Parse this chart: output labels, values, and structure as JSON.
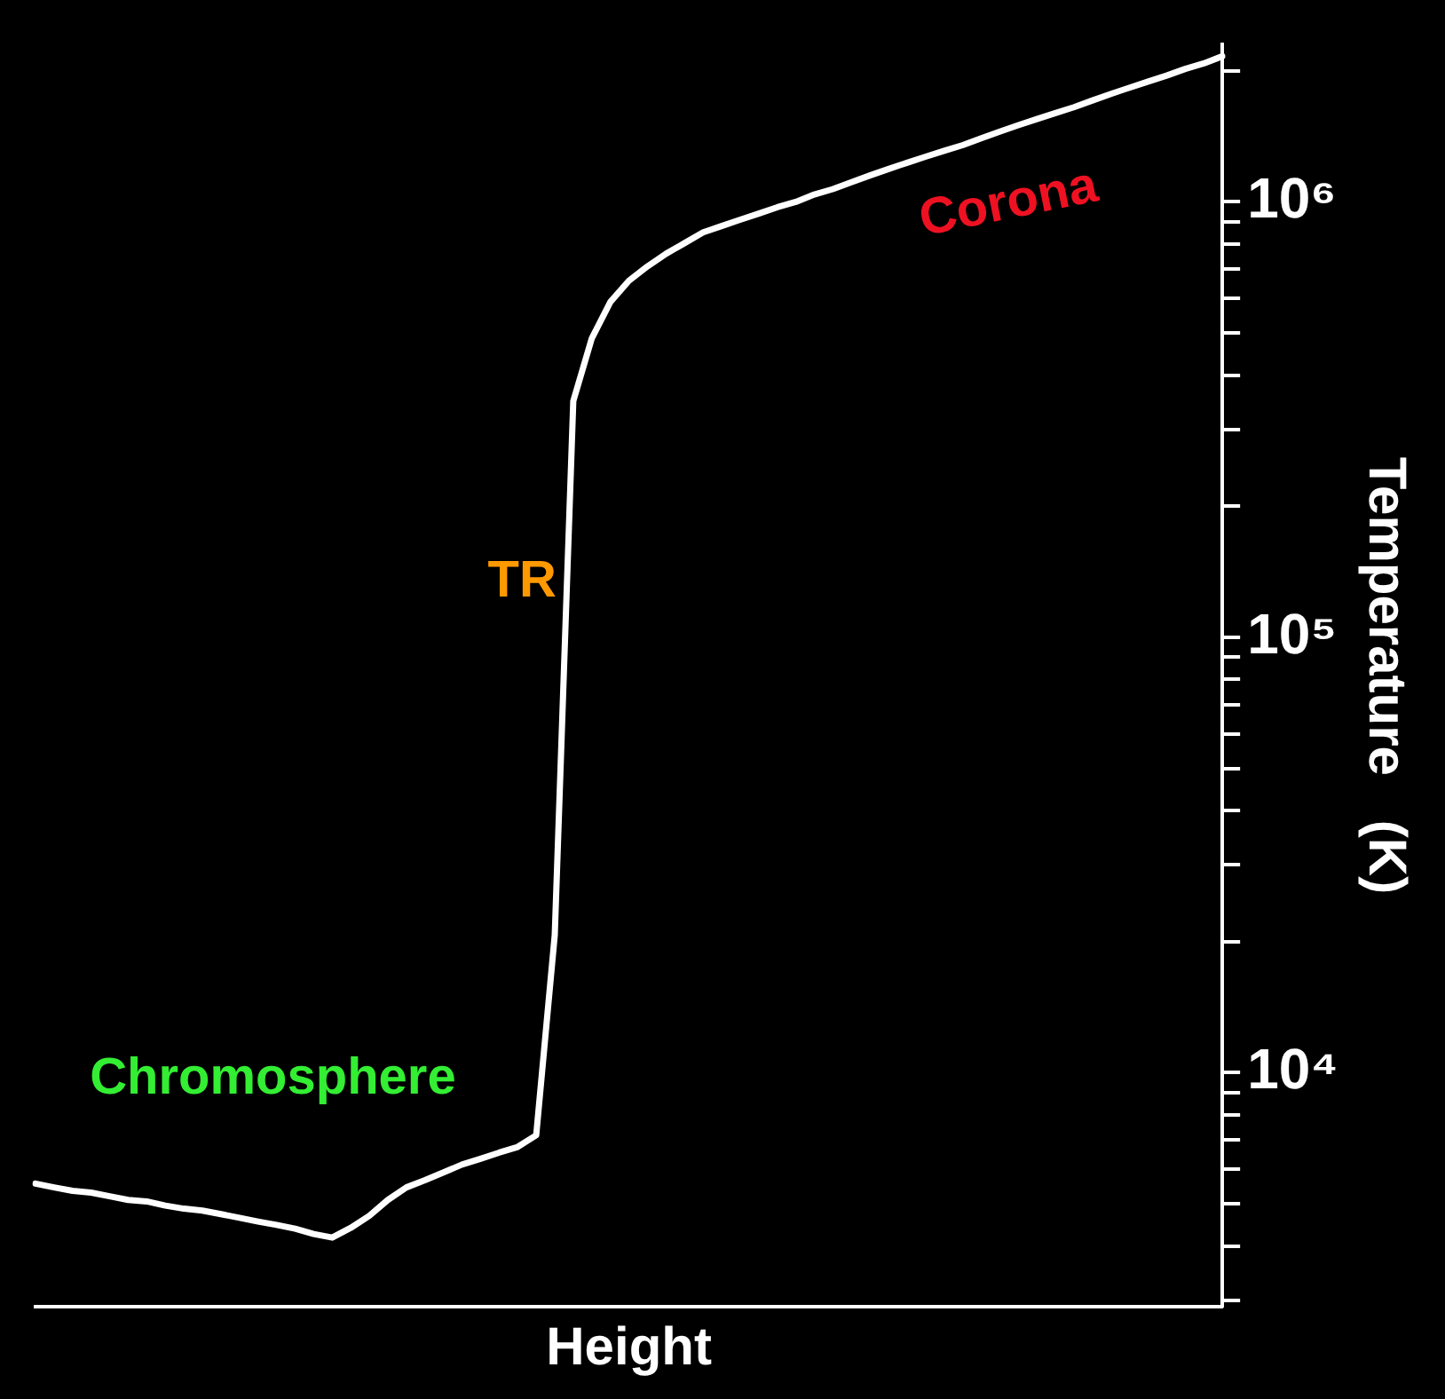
{
  "chart_data": {
    "type": "line",
    "xlabel": "Height",
    "ylabel": "Temperature   (K)",
    "categories": [
      null,
      null,
      null,
      null,
      null,
      null,
      null,
      null,
      null,
      null,
      null,
      null,
      null,
      null,
      null,
      null,
      null,
      null,
      null,
      null,
      null,
      null,
      null,
      null,
      null,
      null,
      null,
      null,
      null,
      null,
      null,
      null,
      null,
      null,
      null,
      null,
      null,
      null,
      null,
      null,
      null,
      null,
      null,
      null,
      null,
      null,
      null,
      null,
      null,
      null,
      null,
      null,
      null,
      null,
      null,
      null,
      null,
      null,
      null,
      null,
      null,
      null,
      null,
      null,
      null
    ],
    "series": [
      {
        "color": "#ffffff",
        "values": [
          5560,
          5450,
          5350,
          5300,
          5200,
          5100,
          5060,
          4950,
          4870,
          4820,
          4730,
          4640,
          4550,
          4470,
          4380,
          4260,
          4180,
          4400,
          4690,
          5100,
          5450,
          5660,
          5900,
          6150,
          6340,
          6550,
          6750,
          7180,
          20700,
          349000,
          486000,
          589000,
          659000,
          711000,
          760000,
          804000,
          851000,
          880000,
          910000,
          940000,
          972000,
          1000000,
          1040000,
          1070000,
          1110000,
          1150000,
          1190000,
          1230000,
          1270000,
          1310000,
          1350000,
          1400000,
          1450000,
          1500000,
          1550000,
          1600000,
          1650000,
          1710000,
          1770000,
          1830000,
          1890000,
          1950000,
          2020000,
          2080000,
          2160000
        ]
      }
    ],
    "log": "y",
    "ylim": [
      2900,
      2300000
    ],
    "yticks": [
      {
        "value": 3000,
        "label": null
      },
      {
        "value": 4000,
        "label": null
      },
      {
        "value": 5000,
        "label": null
      },
      {
        "value": 6000,
        "label": null
      },
      {
        "value": 7000,
        "label": null
      },
      {
        "value": 8000,
        "label": null
      },
      {
        "value": 9000,
        "label": null
      },
      {
        "value": 10000,
        "label": "10⁴"
      },
      {
        "value": 20000,
        "label": null
      },
      {
        "value": 30000,
        "label": null
      },
      {
        "value": 40000,
        "label": null
      },
      {
        "value": 50000,
        "label": null
      },
      {
        "value": 60000,
        "label": null
      },
      {
        "value": 70000,
        "label": null
      },
      {
        "value": 80000,
        "label": null
      },
      {
        "value": 90000,
        "label": null
      },
      {
        "value": 100000,
        "label": "10⁵"
      },
      {
        "value": 200000,
        "label": null
      },
      {
        "value": 300000,
        "label": null
      },
      {
        "value": 400000,
        "label": null
      },
      {
        "value": 500000,
        "label": null
      },
      {
        "value": 600000,
        "label": null
      },
      {
        "value": 700000,
        "label": null
      },
      {
        "value": 800000,
        "label": null
      },
      {
        "value": 900000,
        "label": null
      },
      {
        "value": 1000000,
        "label": "10⁶"
      },
      {
        "value": 2000000,
        "label": null
      }
    ],
    "tick_labels": "y",
    "grid": false,
    "legend": false,
    "marker": "none",
    "line_style": "solid",
    "annotations": [
      "Chromosphere",
      "TR",
      "Corona"
    ]
  }
}
